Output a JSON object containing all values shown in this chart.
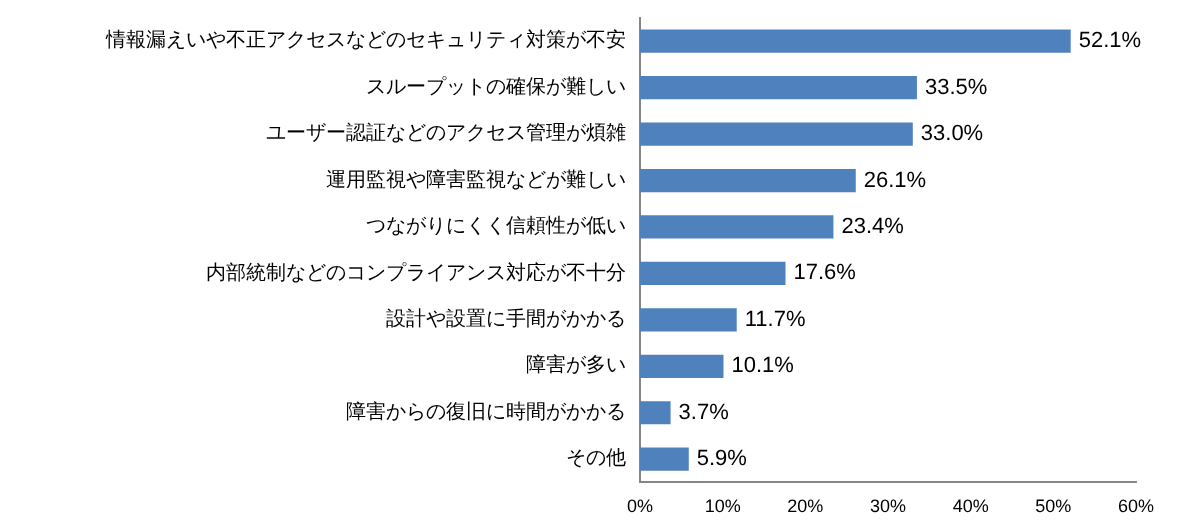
{
  "chart_data": {
    "type": "bar",
    "orientation": "horizontal",
    "categories": [
      "情報漏えいや不正アクセスなどのセキュリティ対策が不安",
      "スループットの確保が難しい",
      "ユーザー認証などのアクセス管理が煩雑",
      "運用監視や障害監視などが難しい",
      "つながりにくく信頼性が低い",
      "内部統制などのコンプライアンス対応が不十分",
      "設計や設置に手間がかかる",
      "障害が多い",
      "障害からの復旧に時間がかかる",
      "その他"
    ],
    "values": [
      52.1,
      33.5,
      33.0,
      26.1,
      23.4,
      17.6,
      11.7,
      10.1,
      3.7,
      5.9
    ],
    "value_labels": [
      "52.1%",
      "33.5%",
      "33.0%",
      "26.1%",
      "23.4%",
      "17.6%",
      "11.7%",
      "10.1%",
      "3.7%",
      "5.9%"
    ],
    "color": "#4f81bd",
    "xlim": [
      0,
      60
    ],
    "xticks": [
      {
        "value": 0,
        "label": "0%"
      },
      {
        "value": 10,
        "label": "10%"
      },
      {
        "value": 20,
        "label": "20%"
      },
      {
        "value": 30,
        "label": "30%"
      },
      {
        "value": 40,
        "label": "40%"
      },
      {
        "value": 50,
        "label": "50%"
      },
      {
        "value": 60,
        "label": "60%"
      }
    ],
    "grid": false,
    "legend": false
  }
}
